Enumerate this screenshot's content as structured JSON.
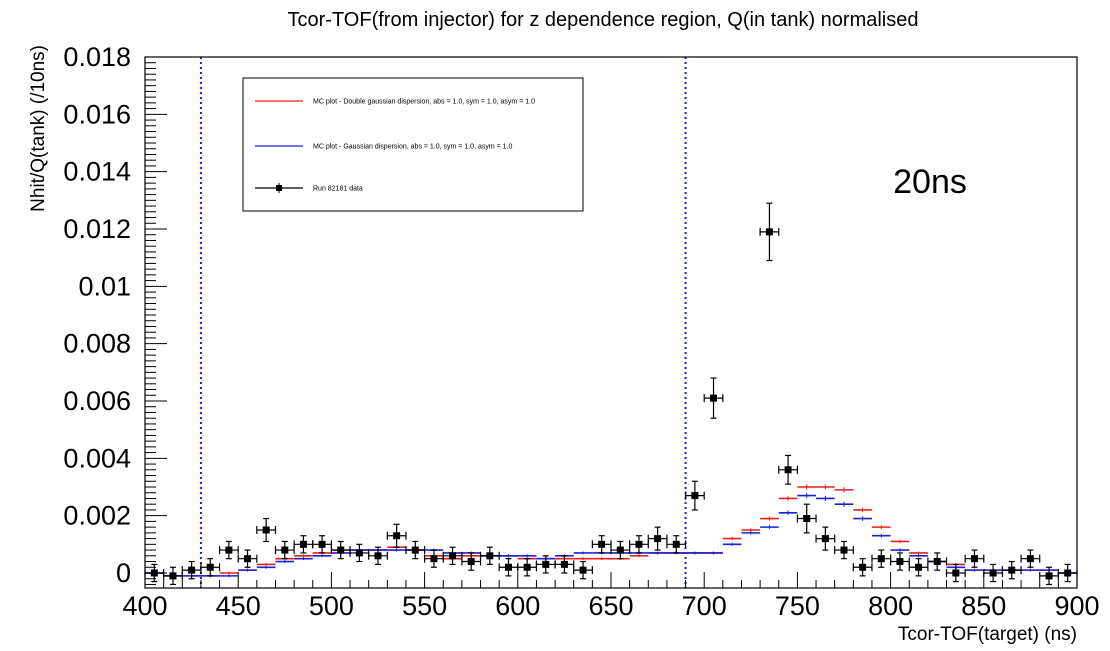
{
  "chart_data": {
    "type": "scatter",
    "title": "Tcor-TOF(from injector) for z dependence region, Q(in tank) normalised",
    "xlabel": "Tcor-TOF(target) (ns)",
    "ylabel": "Nhit/Q(tank) (/10ns)",
    "xlim": [
      400,
      900
    ],
    "ylim": [
      -0.0005,
      0.018
    ],
    "x_ticks": [
      400,
      450,
      500,
      550,
      600,
      650,
      700,
      750,
      800,
      850,
      900
    ],
    "x_tick_labels": [
      "400",
      "450",
      "500",
      "550",
      "600",
      "650",
      "700",
      "750",
      "800",
      "850",
      "900"
    ],
    "y_ticks": [
      0,
      0.002,
      0.004,
      0.006,
      0.008,
      0.01,
      0.012,
      0.014,
      0.016,
      0.018
    ],
    "y_tick_labels": [
      "0",
      "0.002",
      "0.004",
      "0.006",
      "0.008",
      "0.01",
      "0.012",
      "0.014",
      "0.016",
      "0.018"
    ],
    "bin_width": 10,
    "x": [
      405,
      415,
      425,
      435,
      445,
      455,
      465,
      475,
      485,
      495,
      505,
      515,
      525,
      535,
      545,
      555,
      565,
      575,
      585,
      595,
      605,
      615,
      625,
      635,
      645,
      655,
      665,
      675,
      685,
      695,
      705,
      715,
      725,
      735,
      745,
      755,
      765,
      775,
      785,
      795,
      805,
      815,
      825,
      835,
      845,
      855,
      865,
      875,
      885,
      895
    ],
    "series": [
      {
        "name": "MC plot - Double gaussian dispersion, abs = 1.0, sym = 1.0, asym = 1.0",
        "color": "#e8201b",
        "style": "step-with-errors",
        "values": [
          0.0,
          -0.0001,
          -0.0001,
          -0.0001,
          0.0,
          0.0001,
          0.0003,
          0.0005,
          0.0006,
          0.0007,
          0.0008,
          0.0008,
          0.0008,
          0.0009,
          0.0008,
          0.0006,
          0.0005,
          0.0006,
          0.0006,
          0.0006,
          0.0005,
          0.0005,
          0.0005,
          0.0005,
          0.0005,
          0.0005,
          0.0006,
          0.0007,
          0.0007,
          0.0007,
          0.0007,
          0.0012,
          0.0015,
          0.0019,
          0.0026,
          0.003,
          0.003,
          0.0029,
          0.0022,
          0.0016,
          0.0011,
          0.0007,
          0.0004,
          0.0003,
          0.0001,
          0.0001,
          0.0001,
          0.0001,
          0.0001,
          0.0
        ],
        "errors": [
          5e-05,
          5e-05,
          5e-05,
          5e-05,
          5e-05,
          5e-05,
          5e-05,
          5e-05,
          5e-05,
          5e-05,
          5e-05,
          5e-05,
          5e-05,
          5e-05,
          5e-05,
          5e-05,
          5e-05,
          5e-05,
          5e-05,
          5e-05,
          5e-05,
          5e-05,
          5e-05,
          5e-05,
          5e-05,
          5e-05,
          5e-05,
          5e-05,
          5e-05,
          5e-05,
          5e-05,
          6e-05,
          6e-05,
          7e-05,
          8e-05,
          9e-05,
          9e-05,
          9e-05,
          8e-05,
          7e-05,
          6e-05,
          5e-05,
          5e-05,
          5e-05,
          5e-05,
          5e-05,
          5e-05,
          5e-05,
          5e-05,
          5e-05
        ]
      },
      {
        "name": "MC plot - Gaussian dispersion, abs = 1.0, sym = 1.0, asym = 1.0",
        "color": "#1b22d6",
        "style": "step-with-errors",
        "values": [
          0.0,
          -0.0001,
          -0.0001,
          -0.0001,
          -0.0001,
          0.0001,
          0.0002,
          0.0004,
          0.0005,
          0.0006,
          0.0007,
          0.0008,
          0.0008,
          0.0008,
          0.0008,
          0.0008,
          0.0007,
          0.0007,
          0.0006,
          0.0006,
          0.0006,
          0.0005,
          0.0006,
          0.0007,
          0.0007,
          0.0007,
          0.0007,
          0.0007,
          0.0007,
          0.0007,
          0.0007,
          0.001,
          0.0014,
          0.0016,
          0.0021,
          0.0027,
          0.0026,
          0.0024,
          0.0019,
          0.0013,
          0.0008,
          0.0006,
          0.0004,
          0.0002,
          0.0001,
          0.0001,
          0.0001,
          0.0001,
          0.0001,
          0.0
        ],
        "errors": [
          5e-05,
          5e-05,
          5e-05,
          5e-05,
          5e-05,
          5e-05,
          5e-05,
          5e-05,
          5e-05,
          5e-05,
          5e-05,
          5e-05,
          5e-05,
          5e-05,
          5e-05,
          5e-05,
          5e-05,
          5e-05,
          5e-05,
          5e-05,
          5e-05,
          5e-05,
          5e-05,
          5e-05,
          5e-05,
          5e-05,
          5e-05,
          5e-05,
          5e-05,
          5e-05,
          5e-05,
          6e-05,
          6e-05,
          7e-05,
          8e-05,
          9e-05,
          9e-05,
          9e-05,
          8e-05,
          7e-05,
          6e-05,
          5e-05,
          5e-05,
          5e-05,
          5e-05,
          5e-05,
          5e-05,
          5e-05,
          5e-05,
          5e-05
        ]
      },
      {
        "name": "Run 82181 data",
        "color": "#000000",
        "style": "points-with-errors",
        "values": [
          0.0,
          -0.0001,
          0.0001,
          0.0002,
          0.0008,
          0.0005,
          0.0015,
          0.0008,
          0.001,
          0.001,
          0.0008,
          0.0007,
          0.0006,
          0.0013,
          0.0008,
          0.0005,
          0.0006,
          0.0004,
          0.0006,
          0.0002,
          0.0002,
          0.0003,
          0.0003,
          0.0001,
          0.001,
          0.0008,
          0.001,
          0.0012,
          0.001,
          0.0027,
          0.0061,
          0.0,
          0.0,
          0.0119,
          0.0036,
          0.0019,
          0.0012,
          0.0008,
          0.0002,
          0.0005,
          0.0004,
          0.0002,
          0.0004,
          0.0,
          0.0005,
          0.0,
          0.0001,
          0.0005,
          -0.0001,
          0.0
        ],
        "show": [
          true,
          true,
          true,
          true,
          true,
          true,
          true,
          true,
          true,
          true,
          true,
          true,
          true,
          true,
          true,
          true,
          true,
          true,
          true,
          true,
          true,
          true,
          true,
          true,
          true,
          true,
          true,
          true,
          true,
          true,
          true,
          false,
          false,
          true,
          true,
          true,
          true,
          true,
          true,
          true,
          true,
          true,
          true,
          true,
          true,
          true,
          true,
          true,
          true,
          true
        ],
        "errors": [
          0.0003,
          0.0003,
          0.0003,
          0.0003,
          0.0003,
          0.0003,
          0.0004,
          0.0003,
          0.0003,
          0.0003,
          0.0003,
          0.0003,
          0.0003,
          0.0004,
          0.0003,
          0.0003,
          0.0003,
          0.0003,
          0.0003,
          0.0003,
          0.0003,
          0.0003,
          0.0003,
          0.0003,
          0.0003,
          0.0003,
          0.0003,
          0.0004,
          0.0003,
          0.0005,
          0.0007,
          0.0003,
          0.0003,
          0.001,
          0.0005,
          0.0005,
          0.0004,
          0.0003,
          0.0003,
          0.0003,
          0.0003,
          0.0003,
          0.0003,
          0.0003,
          0.0003,
          0.0003,
          0.0003,
          0.0003,
          0.0003,
          0.0003
        ]
      }
    ],
    "vertical_lines": [
      {
        "x": 430,
        "color": "#1b22d6",
        "style": "dotted"
      },
      {
        "x": 690,
        "color": "#1b22d6",
        "style": "dotted"
      }
    ],
    "legend": {
      "placement": "top-left",
      "entries": [
        {
          "label": "MC plot - Double gaussian dispersion, abs = 1.0, sym = 1.0, asym = 1.0",
          "color": "#e8201b",
          "marker": "line"
        },
        {
          "label": "MC plot - Gaussian dispersion, abs = 1.0, sym = 1.0, asym = 1.0",
          "color": "#1b22d6",
          "marker": "line"
        },
        {
          "label": "Run 82181 data",
          "color": "#000000",
          "marker": "point"
        }
      ]
    },
    "annotation": "20ns",
    "grid": false
  }
}
